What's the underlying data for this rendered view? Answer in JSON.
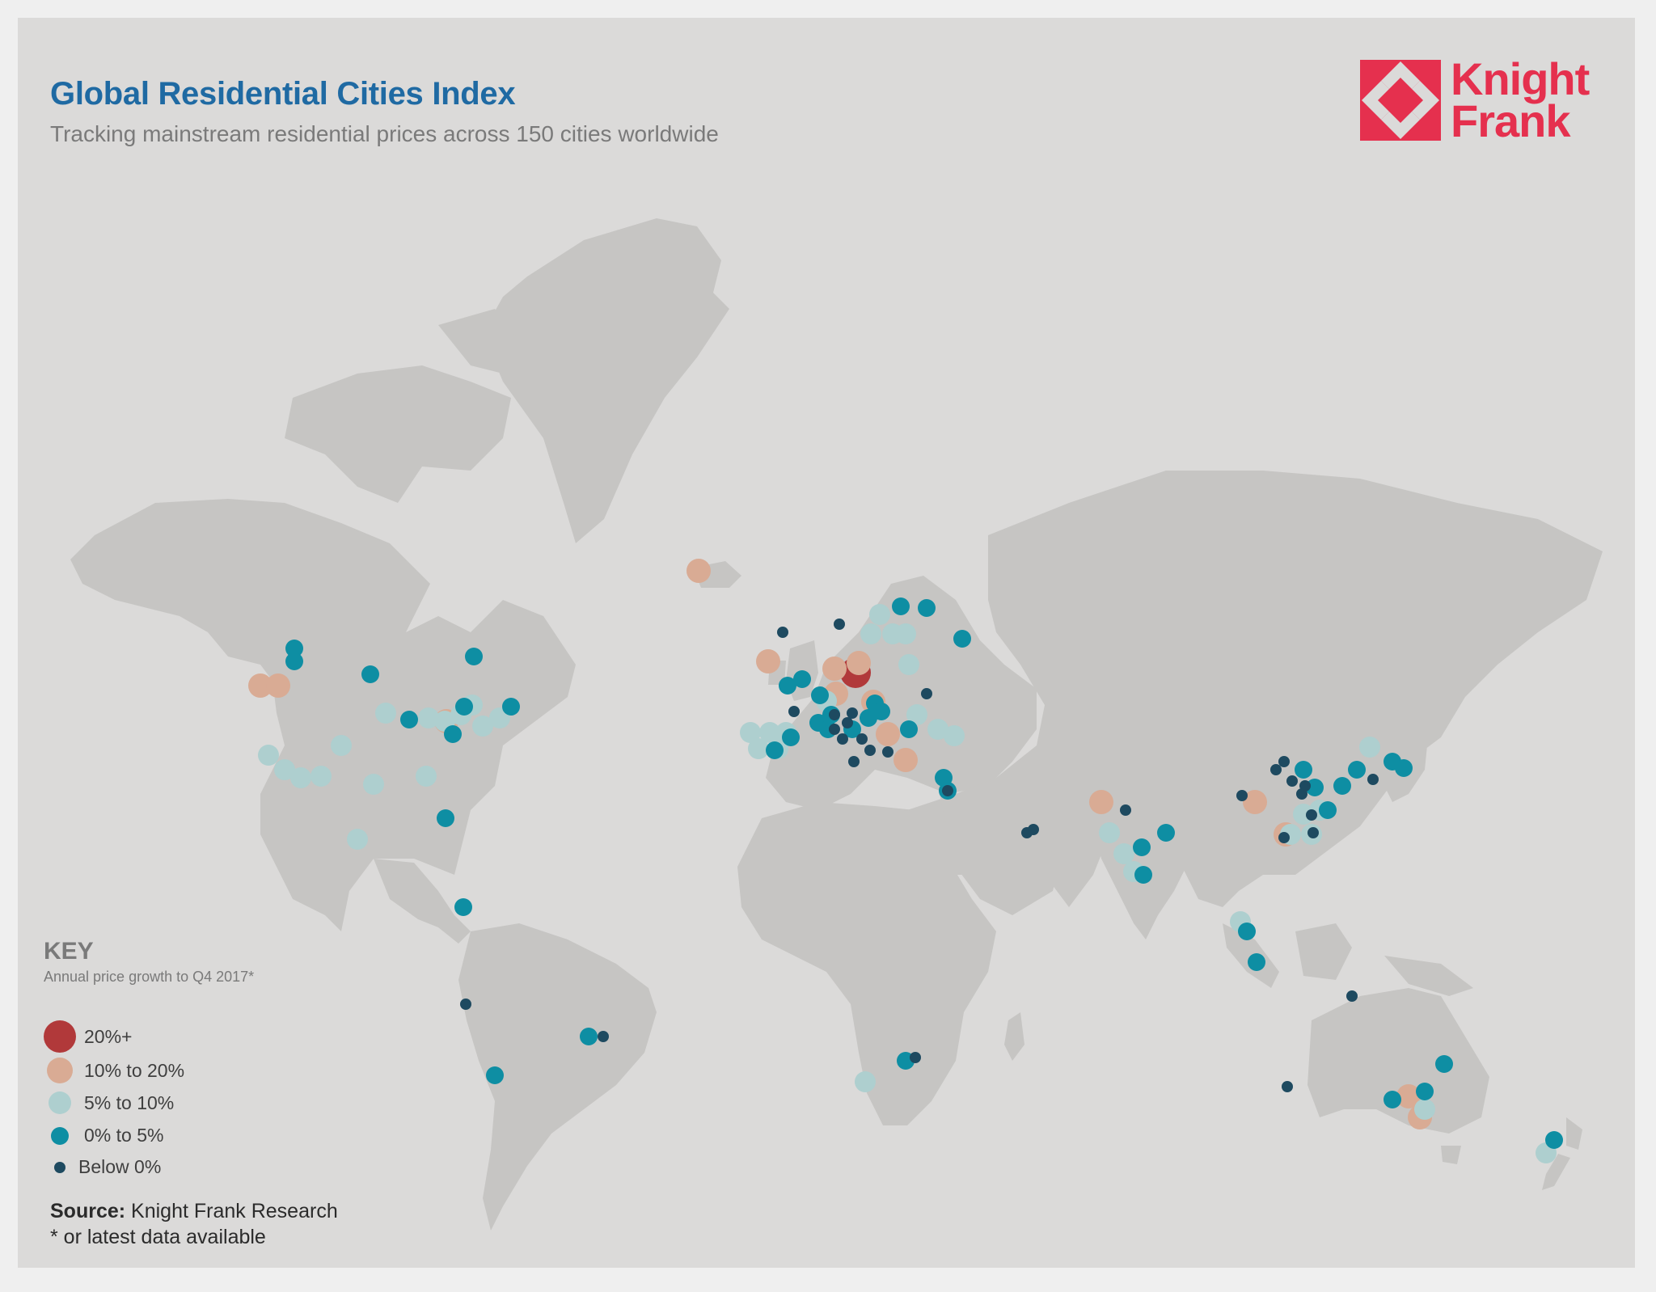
{
  "header": {
    "title": "Global Residential Cities Index",
    "subtitle": "Tracking mainstream residential prices across 150 cities worldwide"
  },
  "logo": {
    "line1": "Knight",
    "line2": "Frank",
    "color": "#e5304e"
  },
  "key": {
    "title": "KEY",
    "subtitle": "Annual price growth to Q4 2017*",
    "items": [
      {
        "label": "20%+",
        "color": "#b1393a"
      },
      {
        "label": "10% to 20%",
        "color": "#d9ab94"
      },
      {
        "label": "5% to 10%",
        "color": "#aecfcf"
      },
      {
        "label": "0% to 5%",
        "color": "#0e8ea3"
      },
      {
        "label": "Below 0%",
        "color": "#1e4a60"
      }
    ]
  },
  "source": {
    "label": "Source:",
    "text": "Knight Frank Research"
  },
  "footnote": "* or latest data available",
  "colors": {
    "background": "#dbdad9",
    "land": "#c6c5c3",
    "title": "#1f6aa3"
  }
}
